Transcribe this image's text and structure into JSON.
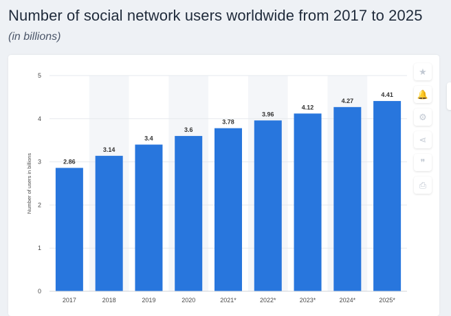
{
  "header": {
    "title": "Number of social network users worldwide from 2017 to 2025",
    "subtitle": "(in billions)"
  },
  "toolbar": {
    "buttons": [
      {
        "icon": "star-icon",
        "glyph": "★"
      },
      {
        "icon": "bell-icon",
        "glyph": "🔔"
      },
      {
        "icon": "gear-icon",
        "glyph": "⚙"
      },
      {
        "icon": "share-icon",
        "glyph": "⋖"
      },
      {
        "icon": "quote-icon",
        "glyph": "❞"
      },
      {
        "icon": "print-icon",
        "glyph": "⎙"
      }
    ]
  },
  "colors": {
    "bar": "#2876dd",
    "band": "#f4f6f9",
    "grid": "#e6e9ee",
    "axis_text": "#4a4a4a"
  },
  "chart_data": {
    "type": "bar",
    "categories": [
      "2017",
      "2018",
      "2019",
      "2020",
      "2021*",
      "2022*",
      "2023*",
      "2024*",
      "2025*"
    ],
    "values": [
      2.86,
      3.14,
      3.4,
      3.6,
      3.78,
      3.96,
      4.12,
      4.27,
      4.41
    ],
    "value_labels": [
      "2.86",
      "3.14",
      "3.4",
      "3.6",
      "3.78",
      "3.96",
      "4.12",
      "4.27",
      "4.41"
    ],
    "ylabel": "Number of users in billions",
    "xlabel": "",
    "ylim": [
      0,
      5
    ],
    "yticks": [
      "0",
      "1",
      "2",
      "3",
      "4",
      "5"
    ],
    "grid": true
  }
}
